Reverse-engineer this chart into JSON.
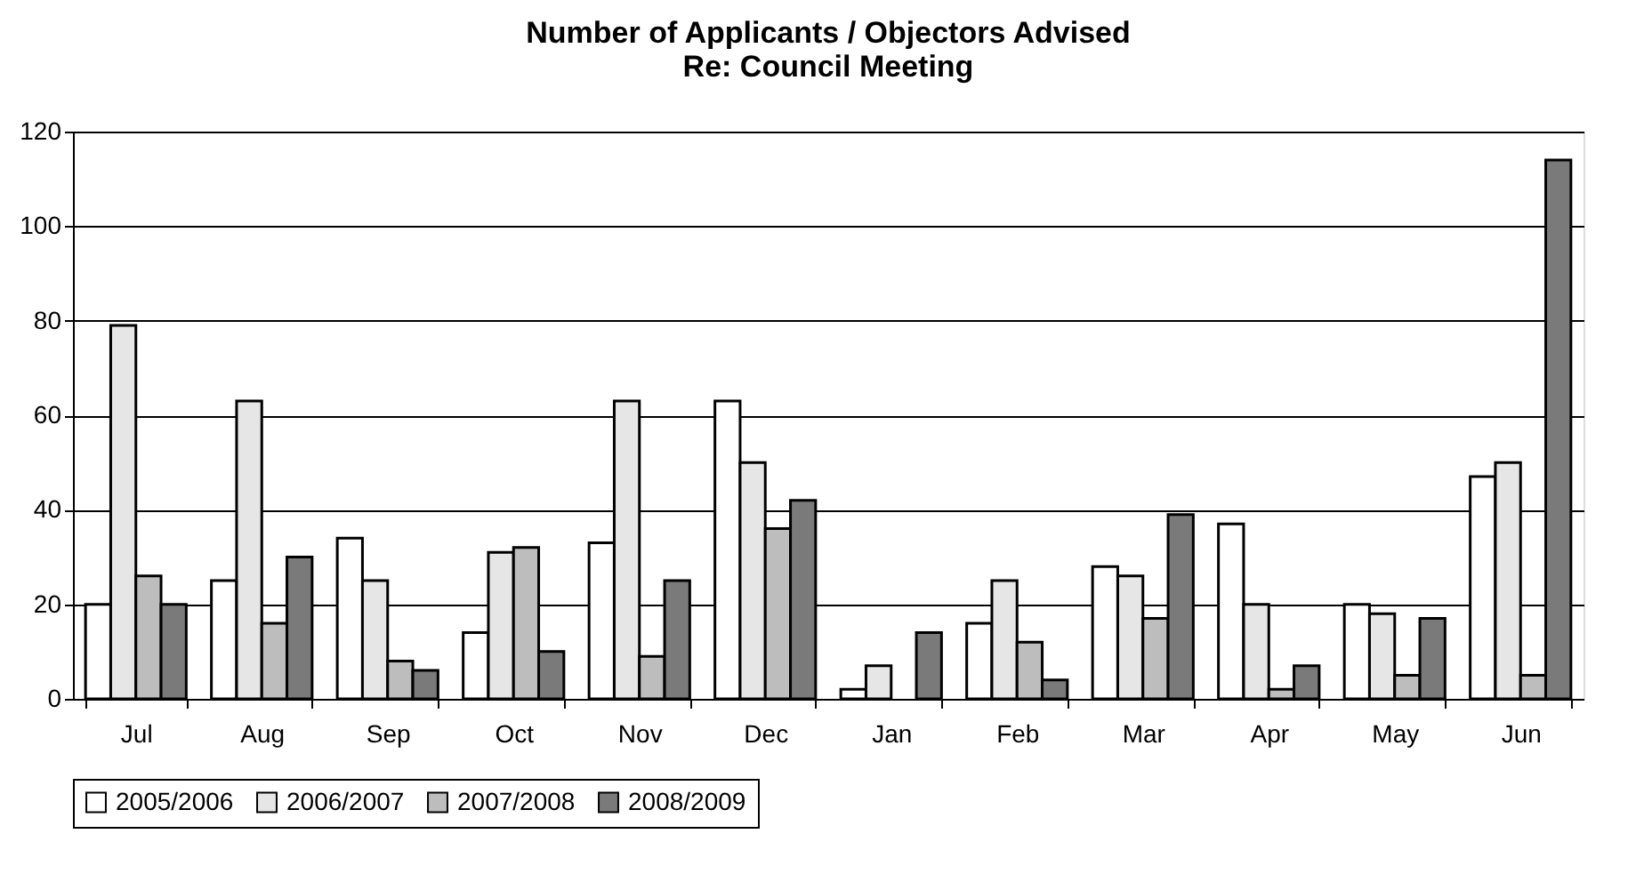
{
  "chart_data": {
    "type": "bar",
    "title": [
      "Number of Applicants / Objectors Advised",
      "Re: Council Meeting"
    ],
    "categories": [
      "Jul",
      "Aug",
      "Sep",
      "Oct",
      "Nov",
      "Dec",
      "Jan",
      "Feb",
      "Mar",
      "Apr",
      "May",
      "Jun"
    ],
    "series": [
      {
        "name": "2005/2006",
        "color": "#ffffff",
        "values": [
          20,
          25,
          34,
          14,
          33,
          63,
          2,
          16,
          28,
          37,
          20,
          47
        ]
      },
      {
        "name": "2006/2007",
        "color": "#e6e6e6",
        "values": [
          79,
          63,
          25,
          31,
          63,
          50,
          7,
          25,
          26,
          20,
          18,
          50
        ]
      },
      {
        "name": "2007/2008",
        "color": "#bdbdbd",
        "values": [
          26,
          16,
          8,
          32,
          9,
          36,
          null,
          12,
          17,
          2,
          5,
          5
        ]
      },
      {
        "name": "2008/2009",
        "color": "#7a7a7a",
        "values": [
          20,
          30,
          6,
          10,
          25,
          42,
          14,
          4,
          39,
          7,
          17,
          114
        ]
      }
    ],
    "ylim": [
      0,
      120
    ],
    "yticks": [
      0,
      20,
      40,
      60,
      80,
      100,
      120
    ],
    "grid": "y",
    "legend": "bottom"
  }
}
